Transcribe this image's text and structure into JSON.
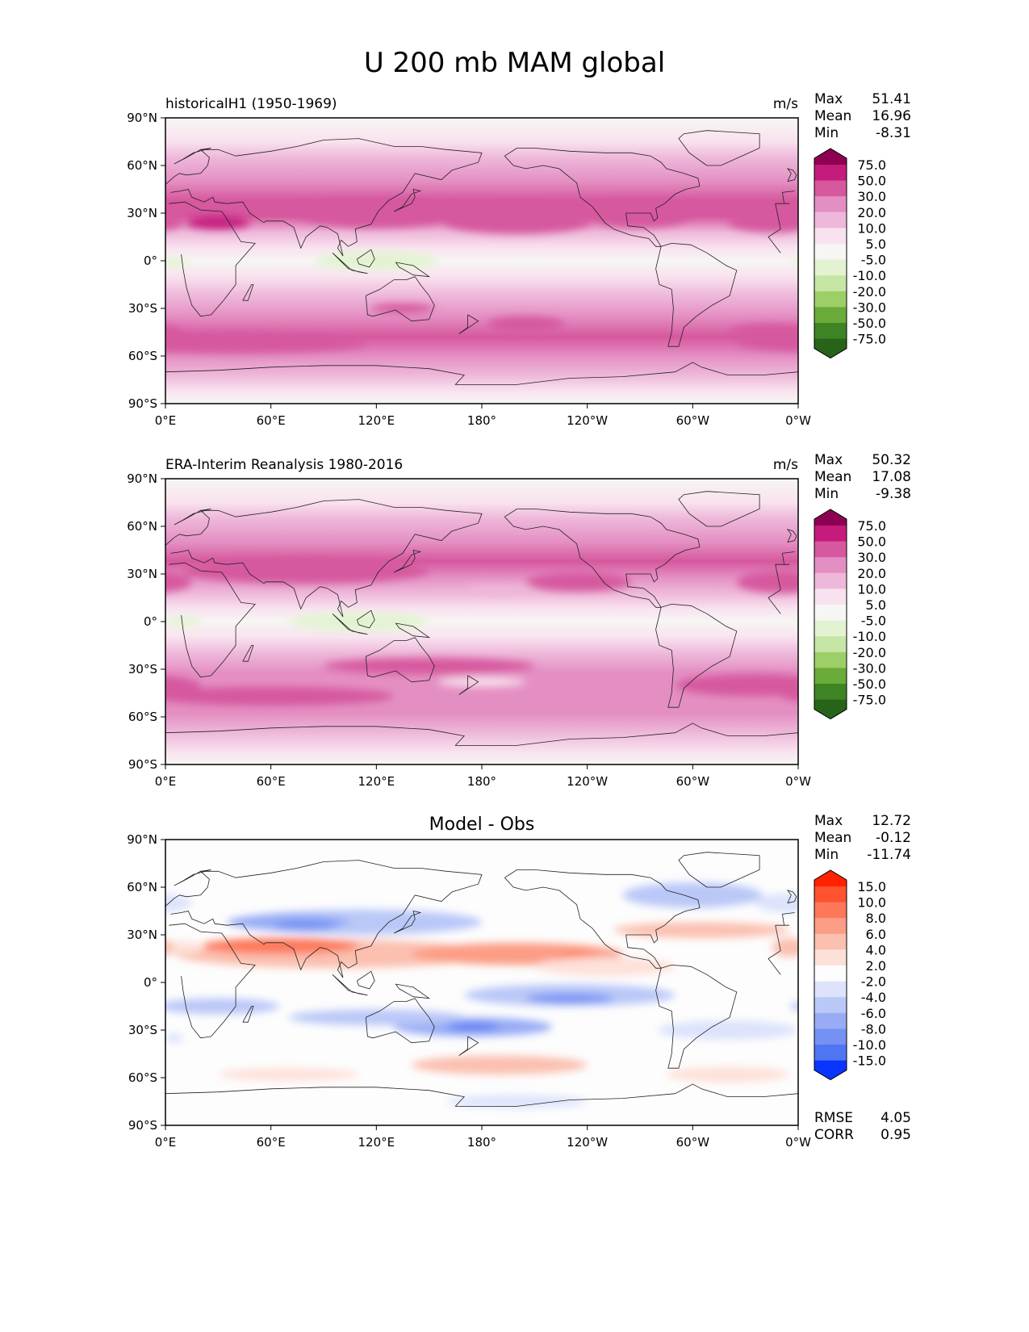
{
  "figure_title": "U 200 mb MAM global",
  "chart_data": [
    {
      "type": "contour-map",
      "left_title": "historicalH1 (1950-1969)",
      "center_title": "",
      "units": "m/s",
      "stats": [
        {
          "label": "Max",
          "value": "51.41"
        },
        {
          "label": "Mean",
          "value": "16.96"
        },
        {
          "label": "Min",
          "value": "-8.31"
        }
      ],
      "xticks": [
        "0°E",
        "60°E",
        "120°E",
        "180°",
        "120°W",
        "60°W",
        "0°W"
      ],
      "yticks": [
        "90°N",
        "60°N",
        "30°N",
        "0°",
        "30°S",
        "60°S",
        "90°S"
      ],
      "xlim": [
        0,
        360
      ],
      "ylim": [
        -90,
        90
      ],
      "colorbar": {
        "levels": [
          "75.0",
          "50.0",
          "30.0",
          "20.0",
          "10.0",
          "5.0",
          "-5.0",
          "-10.0",
          "-20.0",
          "-30.0",
          "-50.0",
          "-75.0"
        ],
        "colors": [
          "#8e0152",
          "#c51b7d",
          "#d6589f",
          "#e48fc3",
          "#eeb8da",
          "#f9e2ef",
          "#f6f6f4",
          "#e3f3d2",
          "#c6e6a6",
          "#9ccf67",
          "#6aab39",
          "#3e8424",
          "#276419"
        ]
      },
      "bands": [
        {
          "lat": 90,
          "level": 6
        },
        {
          "lat": 75,
          "level": 5
        },
        {
          "lat": 65,
          "level": 4
        },
        {
          "lat": 50,
          "level": 3
        },
        {
          "lat": 38,
          "level": 2
        },
        {
          "lat": 28,
          "level": 2
        },
        {
          "lat": 18,
          "level": 4
        },
        {
          "lat": 8,
          "level": 5
        },
        {
          "lat": 0,
          "level": 6
        },
        {
          "lat": -10,
          "level": 5
        },
        {
          "lat": -22,
          "level": 4
        },
        {
          "lat": -35,
          "level": 3
        },
        {
          "lat": -48,
          "level": 2
        },
        {
          "lat": -60,
          "level": 3
        },
        {
          "lat": -72,
          "level": 4
        },
        {
          "lat": -82,
          "level": 5
        },
        {
          "lat": -90,
          "level": 6
        }
      ],
      "blobs": [
        {
          "lon": 30,
          "lat": 24,
          "dlon": 18,
          "dlat": 4,
          "level": 1
        },
        {
          "lon": 120,
          "lat": 30,
          "dlon": 45,
          "dlat": 9,
          "level": 2
        },
        {
          "lon": 200,
          "lat": 25,
          "dlon": 42,
          "dlat": 8,
          "level": 2
        },
        {
          "lon": 270,
          "lat": 30,
          "dlon": 30,
          "dlat": 9,
          "level": 2
        },
        {
          "lon": 345,
          "lat": 25,
          "dlon": 25,
          "dlat": 7,
          "level": 2
        },
        {
          "lon": 5,
          "lat": -1,
          "dlon": 8,
          "dlat": 3,
          "level": 7
        },
        {
          "lon": 120,
          "lat": 0,
          "dlon": 35,
          "dlat": 6,
          "level": 7
        },
        {
          "lon": 205,
          "lat": -40,
          "dlon": 22,
          "dlat": 5,
          "level": 2
        },
        {
          "lon": 135,
          "lat": -30,
          "dlon": 18,
          "dlat": 3,
          "level": 2
        },
        {
          "lon": 40,
          "lat": -52,
          "dlon": 75,
          "dlat": 6,
          "level": 2
        },
        {
          "lon": 345,
          "lat": -45,
          "dlon": 25,
          "dlat": 5,
          "level": 2
        }
      ]
    },
    {
      "type": "contour-map",
      "left_title": "ERA-Interim Reanalysis 1980-2016",
      "center_title": "",
      "units": "m/s",
      "stats": [
        {
          "label": "Max",
          "value": "50.32"
        },
        {
          "label": "Mean",
          "value": "17.08"
        },
        {
          "label": "Min",
          "value": "-9.38"
        }
      ],
      "xticks": [
        "0°E",
        "60°E",
        "120°E",
        "180°",
        "120°W",
        "60°W",
        "0°W"
      ],
      "yticks": [
        "90°N",
        "60°N",
        "30°N",
        "0°",
        "30°S",
        "60°S",
        "90°S"
      ],
      "xlim": [
        0,
        360
      ],
      "ylim": [
        -90,
        90
      ],
      "colorbar": {
        "levels": [
          "75.0",
          "50.0",
          "30.0",
          "20.0",
          "10.0",
          "5.0",
          "-5.0",
          "-10.0",
          "-20.0",
          "-30.0",
          "-50.0",
          "-75.0"
        ],
        "colors": [
          "#8e0152",
          "#c51b7d",
          "#d6589f",
          "#e48fc3",
          "#eeb8da",
          "#f9e2ef",
          "#f6f6f4",
          "#e3f3d2",
          "#c6e6a6",
          "#9ccf67",
          "#6aab39",
          "#3e8424",
          "#276419"
        ]
      },
      "bands": [
        {
          "lat": 90,
          "level": 6
        },
        {
          "lat": 75,
          "level": 5
        },
        {
          "lat": 65,
          "level": 4
        },
        {
          "lat": 50,
          "level": 3
        },
        {
          "lat": 38,
          "level": 2
        },
        {
          "lat": 28,
          "level": 3
        },
        {
          "lat": 18,
          "level": 4
        },
        {
          "lat": 8,
          "level": 5
        },
        {
          "lat": 0,
          "level": 6
        },
        {
          "lat": -10,
          "level": 5
        },
        {
          "lat": -20,
          "level": 4
        },
        {
          "lat": -32,
          "level": 3
        },
        {
          "lat": -45,
          "level": 3
        },
        {
          "lat": -58,
          "level": 3
        },
        {
          "lat": -70,
          "level": 4
        },
        {
          "lat": -82,
          "level": 5
        },
        {
          "lat": -90,
          "level": 6
        }
      ],
      "blobs": [
        {
          "lon": 80,
          "lat": 32,
          "dlon": 70,
          "dlat": 8,
          "level": 2
        },
        {
          "lon": 235,
          "lat": 25,
          "dlon": 30,
          "dlat": 6,
          "level": 2
        },
        {
          "lon": 350,
          "lat": 25,
          "dlon": 25,
          "dlat": 7,
          "level": 2
        },
        {
          "lon": 190,
          "lat": 20,
          "dlon": 20,
          "dlat": 3,
          "level": 4
        },
        {
          "lon": 110,
          "lat": 0,
          "dlon": 40,
          "dlat": 6,
          "level": 7
        },
        {
          "lon": 10,
          "lat": 0,
          "dlon": 10,
          "dlat": 3,
          "level": 7
        },
        {
          "lon": 150,
          "lat": -28,
          "dlon": 60,
          "dlat": 5,
          "level": 2
        },
        {
          "lon": 60,
          "lat": -47,
          "dlon": 70,
          "dlat": 6,
          "level": 2
        },
        {
          "lon": 335,
          "lat": -40,
          "dlon": 45,
          "dlat": 7,
          "level": 2
        },
        {
          "lon": 180,
          "lat": -38,
          "dlon": 25,
          "dlat": 3,
          "level": 5
        }
      ]
    },
    {
      "type": "contour-map",
      "left_title": "",
      "center_title": "Model - Obs",
      "units": "",
      "stats": [
        {
          "label": "Max",
          "value": "12.72"
        },
        {
          "label": "Mean",
          "value": "-0.12"
        },
        {
          "label": "Min",
          "value": "-11.74"
        }
      ],
      "bottom_stats": [
        {
          "label": "RMSE",
          "value": "4.05"
        },
        {
          "label": "CORR",
          "value": "0.95"
        }
      ],
      "xticks": [
        "0°E",
        "60°E",
        "120°E",
        "180°",
        "120°W",
        "60°W",
        "0°W"
      ],
      "yticks": [
        "90°N",
        "60°N",
        "30°N",
        "0°",
        "30°S",
        "60°S",
        "90°S"
      ],
      "xlim": [
        0,
        360
      ],
      "ylim": [
        -90,
        90
      ],
      "colorbar": {
        "levels": [
          "15.0",
          "10.0",
          "8.0",
          "6.0",
          "4.0",
          "2.0",
          "-2.0",
          "-4.0",
          "-6.0",
          "-8.0",
          "-10.0",
          "-15.0"
        ],
        "colors": [
          "#ff2200",
          "#fe5230",
          "#fd785a",
          "#fc9d85",
          "#fbc0b0",
          "#fde1d9",
          "#fdfdfd",
          "#dce3fb",
          "#bac8f8",
          "#98acf6",
          "#7591f4",
          "#5075f2",
          "#0a35ff"
        ]
      },
      "bands": [
        {
          "lat": 90,
          "level": 6
        },
        {
          "lat": -90,
          "level": 6
        }
      ],
      "blobs": [
        {
          "lon": 110,
          "lat": 38,
          "dlon": 70,
          "dlat": 8,
          "level": 8
        },
        {
          "lon": 70,
          "lat": 38,
          "dlon": 35,
          "dlat": 5,
          "level": 9
        },
        {
          "lon": 80,
          "lat": 36,
          "dlon": 18,
          "dlat": 3,
          "level": 10
        },
        {
          "lon": 300,
          "lat": 55,
          "dlon": 40,
          "dlat": 8,
          "level": 8
        },
        {
          "lon": 355,
          "lat": 50,
          "dlon": 20,
          "dlat": 6,
          "level": 7
        },
        {
          "lon": 95,
          "lat": 18,
          "dlon": 90,
          "dlat": 9,
          "level": 4
        },
        {
          "lon": 65,
          "lat": 23,
          "dlon": 45,
          "dlat": 5,
          "level": 2
        },
        {
          "lon": 200,
          "lat": 18,
          "dlon": 60,
          "dlat": 7,
          "level": 3
        },
        {
          "lon": 235,
          "lat": 12,
          "dlon": 15,
          "dlat": 7,
          "level": 2
        },
        {
          "lon": 305,
          "lat": 33,
          "dlon": 50,
          "dlat": 5,
          "level": 4
        },
        {
          "lon": 250,
          "lat": 10,
          "dlon": 40,
          "dlat": 6,
          "level": 5
        },
        {
          "lon": 230,
          "lat": -8,
          "dlon": 60,
          "dlat": 7,
          "level": 8
        },
        {
          "lon": 230,
          "lat": -10,
          "dlon": 25,
          "dlat": 3,
          "level": 10
        },
        {
          "lon": 30,
          "lat": -15,
          "dlon": 35,
          "dlat": 5,
          "level": 8
        },
        {
          "lon": 175,
          "lat": -28,
          "dlon": 45,
          "dlat": 6,
          "level": 9
        },
        {
          "lon": 175,
          "lat": -28,
          "dlon": 15,
          "dlat": 2,
          "level": 11
        },
        {
          "lon": 120,
          "lat": -22,
          "dlon": 50,
          "dlat": 5,
          "level": 8
        },
        {
          "lon": 320,
          "lat": -30,
          "dlon": 40,
          "dlat": 6,
          "level": 7
        },
        {
          "lon": 190,
          "lat": -52,
          "dlon": 50,
          "dlat": 6,
          "level": 4
        },
        {
          "lon": 70,
          "lat": -58,
          "dlon": 40,
          "dlat": 4,
          "level": 5
        },
        {
          "lon": 320,
          "lat": -58,
          "dlon": 35,
          "dlat": 5,
          "level": 5
        },
        {
          "lon": 200,
          "lat": -75,
          "dlon": 40,
          "dlat": 4,
          "level": 7
        },
        {
          "lon": 10,
          "lat": 22,
          "dlon": 12,
          "dlat": 4,
          "level": 5
        },
        {
          "lon": 355,
          "lat": 22,
          "dlon": 10,
          "dlat": 6,
          "level": 4
        },
        {
          "lon": 5,
          "lat": -35,
          "dlon": 5,
          "dlat": 3,
          "level": 7
        }
      ]
    }
  ]
}
